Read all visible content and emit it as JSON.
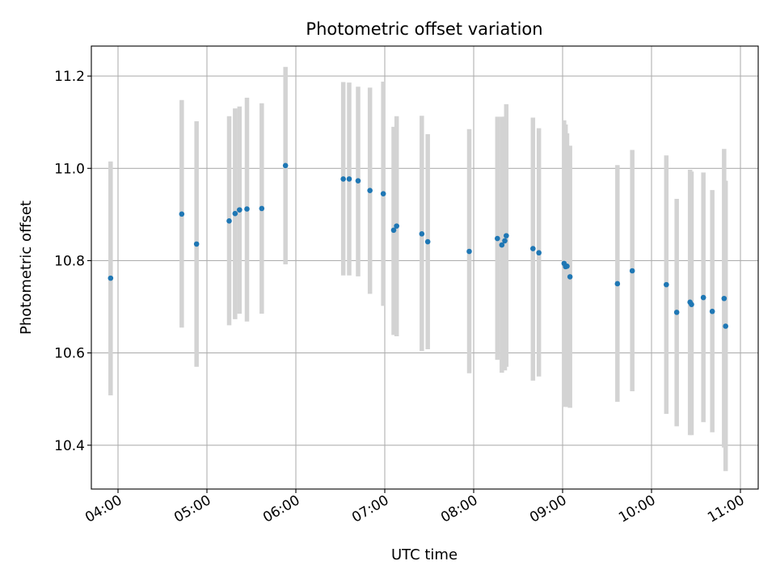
{
  "chart_data": {
    "type": "scatter",
    "title": "Photometric offset variation",
    "xlabel": "UTC time",
    "ylabel": "Photometric offset",
    "x_unit": "UTC time (HH:MM)",
    "xlim": [
      "03:42",
      "11:12"
    ],
    "ylim": [
      10.305,
      11.265
    ],
    "x_ticks": [
      "04:00",
      "05:00",
      "06:00",
      "07:00",
      "08:00",
      "09:00",
      "10:00",
      "11:00"
    ],
    "y_ticks": [
      "10.4",
      "10.6",
      "10.8",
      "11.0",
      "11.2"
    ],
    "grid": true,
    "colors": {
      "marker": "#1f77b4",
      "errorbar": "#d3d3d3",
      "grid": "#b0b0b0",
      "frame": "#000000"
    },
    "points": [
      {
        "x": "03:55",
        "y": 10.762,
        "ymin": 10.508,
        "ymax": 11.015
      },
      {
        "x": "04:43",
        "y": 10.901,
        "ymin": 10.655,
        "ymax": 11.148
      },
      {
        "x": "04:53",
        "y": 10.836,
        "ymin": 10.57,
        "ymax": 11.102
      },
      {
        "x": "05:15",
        "y": 10.886,
        "ymin": 10.66,
        "ymax": 11.113
      },
      {
        "x": "05:19",
        "y": 10.902,
        "ymin": 10.673,
        "ymax": 11.13
      },
      {
        "x": "05:22",
        "y": 10.91,
        "ymin": 10.685,
        "ymax": 11.134
      },
      {
        "x": "05:27",
        "y": 10.912,
        "ymin": 10.668,
        "ymax": 11.153
      },
      {
        "x": "05:37",
        "y": 10.913,
        "ymin": 10.685,
        "ymax": 11.141
      },
      {
        "x": "05:53",
        "y": 11.006,
        "ymin": 10.792,
        "ymax": 11.22
      },
      {
        "x": "06:32",
        "y": 10.977,
        "ymin": 10.768,
        "ymax": 11.187
      },
      {
        "x": "06:36",
        "y": 10.977,
        "ymin": 10.768,
        "ymax": 11.186
      },
      {
        "x": "06:42",
        "y": 10.973,
        "ymin": 10.766,
        "ymax": 11.177
      },
      {
        "x": "06:50",
        "y": 10.952,
        "ymin": 10.728,
        "ymax": 11.175
      },
      {
        "x": "06:59",
        "y": 10.945,
        "ymin": 10.702,
        "ymax": 11.188
      },
      {
        "x": "07:06",
        "y": 10.866,
        "ymin": 10.639,
        "ymax": 11.09
      },
      {
        "x": "07:08",
        "y": 10.875,
        "ymin": 10.636,
        "ymax": 11.113
      },
      {
        "x": "07:25",
        "y": 10.858,
        "ymin": 10.604,
        "ymax": 11.114
      },
      {
        "x": "07:29",
        "y": 10.841,
        "ymin": 10.608,
        "ymax": 11.074
      },
      {
        "x": "07:57",
        "y": 10.82,
        "ymin": 10.556,
        "ymax": 11.085
      },
      {
        "x": "08:16",
        "y": 10.848,
        "ymin": 10.585,
        "ymax": 11.112
      },
      {
        "x": "08:19",
        "y": 10.834,
        "ymin": 10.557,
        "ymax": 11.112
      },
      {
        "x": "08:21",
        "y": 10.843,
        "ymin": 10.562,
        "ymax": 11.112
      },
      {
        "x": "08:22",
        "y": 10.854,
        "ymin": 10.57,
        "ymax": 11.139
      },
      {
        "x": "08:40",
        "y": 10.826,
        "ymin": 10.54,
        "ymax": 11.11
      },
      {
        "x": "08:44",
        "y": 10.817,
        "ymin": 10.549,
        "ymax": 11.087
      },
      {
        "x": "09:01",
        "y": 10.794,
        "ymin": 10.484,
        "ymax": 11.104
      },
      {
        "x": "09:02",
        "y": 10.787,
        "ymin": 10.483,
        "ymax": 11.095
      },
      {
        "x": "09:03",
        "y": 10.788,
        "ymin": 10.483,
        "ymax": 11.076
      },
      {
        "x": "09:05",
        "y": 10.765,
        "ymin": 10.481,
        "ymax": 11.049
      },
      {
        "x": "09:37",
        "y": 10.75,
        "ymin": 10.494,
        "ymax": 11.007
      },
      {
        "x": "09:47",
        "y": 10.778,
        "ymin": 10.517,
        "ymax": 11.04
      },
      {
        "x": "10:10",
        "y": 10.748,
        "ymin": 10.468,
        "ymax": 11.028
      },
      {
        "x": "10:17",
        "y": 10.688,
        "ymin": 10.441,
        "ymax": 10.934
      },
      {
        "x": "10:26",
        "y": 10.71,
        "ymin": 10.422,
        "ymax": 10.997
      },
      {
        "x": "10:27",
        "y": 10.705,
        "ymin": 10.422,
        "ymax": 10.993
      },
      {
        "x": "10:35",
        "y": 10.72,
        "ymin": 10.45,
        "ymax": 10.991
      },
      {
        "x": "10:41",
        "y": 10.69,
        "ymin": 10.428,
        "ymax": 10.953
      },
      {
        "x": "10:49",
        "y": 10.718,
        "ymin": 10.395,
        "ymax": 11.042
      },
      {
        "x": "10:50",
        "y": 10.658,
        "ymin": 10.344,
        "ymax": 10.973
      }
    ]
  }
}
